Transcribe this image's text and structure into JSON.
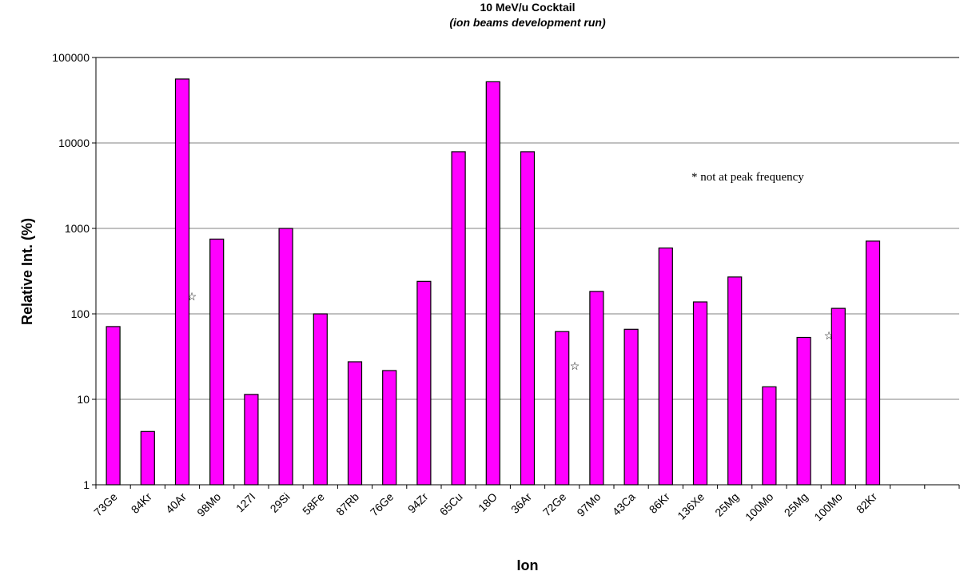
{
  "chart_data": {
    "type": "bar",
    "title": "10 MeV/u Cocktail",
    "subtitle": "(ion beams development run)",
    "x_label": "Ion",
    "y_label": "Relative Int. (%)",
    "categories": [
      "73Ge",
      "84Kr",
      "40Ar",
      "98Mo",
      "127I",
      "29Si",
      "58Fe",
      "87Rb",
      "76Ge",
      "94Zr",
      "65Cu",
      "18O",
      "36Ar",
      "72Ge",
      "97Mo",
      "43Ca",
      "86Kr",
      "136Xe",
      "25Mg",
      "100Mo",
      "25Mg",
      "100Mo",
      "82Kr",
      null,
      null
    ],
    "values": [
      71,
      4.2,
      56000,
      750,
      11.4,
      1000,
      100,
      27.5,
      21.7,
      240,
      7900,
      52000,
      7900,
      62,
      183,
      66,
      590,
      138,
      270,
      14,
      53,
      116,
      710,
      null,
      null
    ],
    "color": "#ff00ff",
    "log_scale": true,
    "grid": true,
    "ylim": [
      1,
      100000
    ],
    "yticks": [
      1,
      10,
      100,
      1000,
      10000,
      100000
    ],
    "annotation": "* not at peak frequency"
  }
}
